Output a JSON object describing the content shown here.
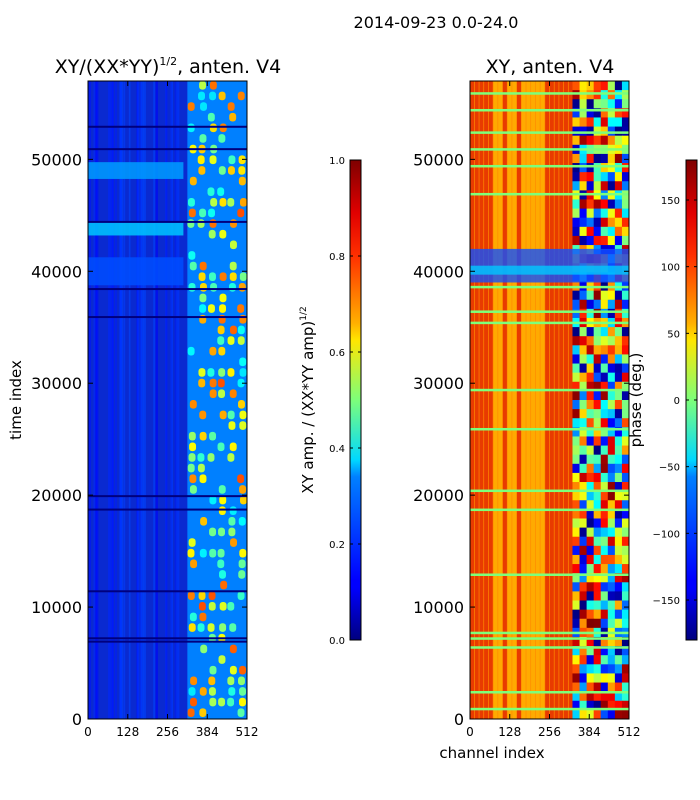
{
  "suptitle": "2014-09-23 0.0-24.0",
  "chart_data": [
    {
      "type": "heatmap",
      "title_main": "XY/(XX*YY)",
      "title_sup": "1/2",
      "title_tail": ", anten. V4",
      "ylabel": "time index",
      "xlabel": "",
      "xlim": [
        0,
        512
      ],
      "ylim": [
        0,
        57000
      ],
      "xticks": [
        0,
        128,
        256,
        384,
        512
      ],
      "yticks": [
        0,
        10000,
        20000,
        30000,
        40000,
        50000
      ],
      "colorbar": {
        "label_main": "XY amp. / (XX*YY amp)",
        "label_sup": "1/2",
        "range": [
          0.0,
          1.0
        ],
        "ticks": [
          0.0,
          0.2,
          0.4,
          0.6,
          0.8,
          1.0
        ],
        "tick_labels": [
          "0.0",
          "0.2",
          "0.4",
          "0.6",
          "0.8",
          "1.0"
        ]
      }
    },
    {
      "type": "heatmap",
      "title": "XY, anten. V4",
      "ylabel": "",
      "xlabel": "channel index",
      "xlim": [
        0,
        512
      ],
      "ylim": [
        0,
        57000
      ],
      "xticks": [
        0,
        128,
        256,
        384,
        512
      ],
      "yticks": [
        0,
        10000,
        20000,
        30000,
        40000,
        50000
      ],
      "colorbar": {
        "label": "phase (deg.)",
        "range": [
          -180,
          180
        ],
        "ticks": [
          -150,
          -100,
          -50,
          0,
          50,
          100,
          150
        ],
        "tick_labels": [
          "−150",
          "−100",
          "−50",
          "0",
          "50",
          "100",
          "150"
        ]
      }
    }
  ],
  "colors": {
    "jet_low": "#00007f",
    "jet_high": "#7f0000",
    "frame": "#000000"
  }
}
